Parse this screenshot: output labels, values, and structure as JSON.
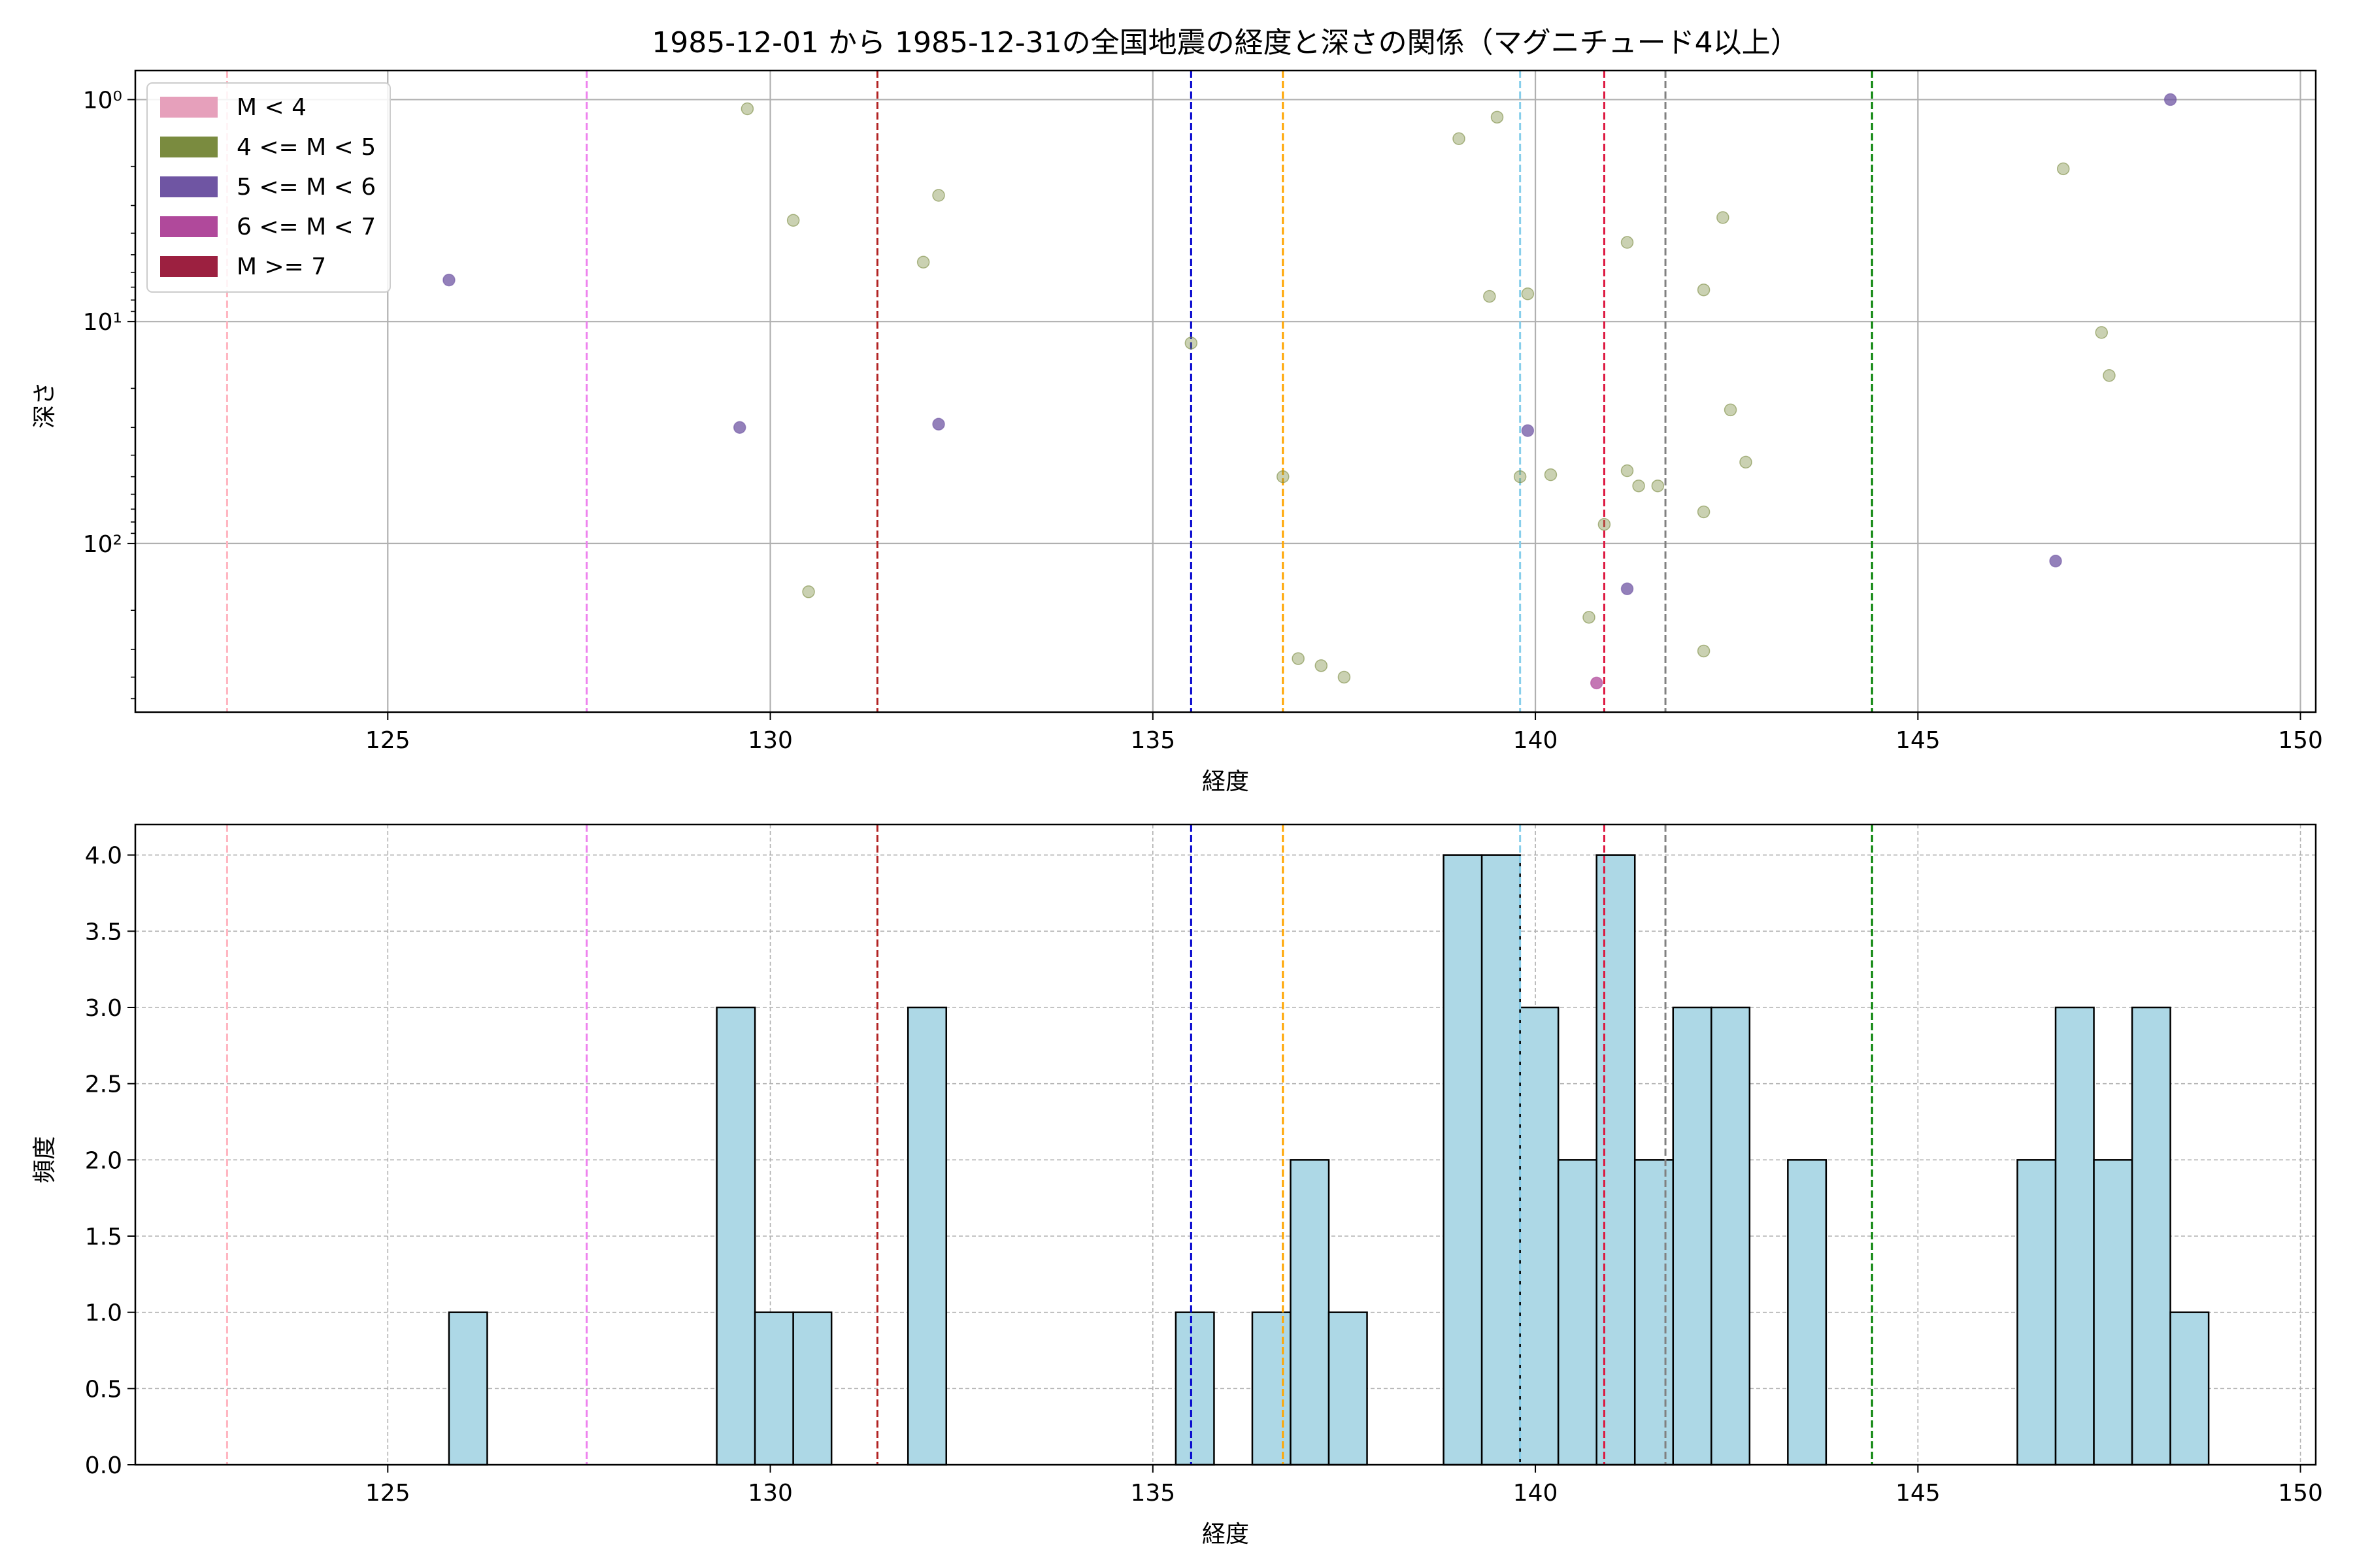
{
  "title": "1985-12-01 から 1985-12-31の全国地震の経度と深さの関係（マグニチュード4以上）",
  "colors": {
    "m_lt4": "#e6a0bb",
    "m_4_5": "#7a8b3f",
    "m_5_6": "#6f55a3",
    "m_6_7": "#b0499b",
    "m_ge7": "#9c2040",
    "hist_fill": "#add8e6"
  },
  "chart_data": [
    {
      "type": "scatter",
      "xlabel": "経度",
      "ylabel": "深さ",
      "xlim": [
        121.7,
        150.2
      ],
      "ylim": [
        575,
        0.74
      ],
      "y_scale": "log",
      "y_inverted": true,
      "grid": true,
      "xticks": [
        125,
        130,
        135,
        140,
        145,
        150
      ],
      "yticks": [
        {
          "value": 1,
          "label": "10⁰"
        },
        {
          "value": 10,
          "label": "10¹"
        },
        {
          "value": 100,
          "label": "10²"
        }
      ],
      "legend": {
        "placement": "top-left",
        "entries": [
          {
            "label": "M < 4",
            "color": "#e6a0bb"
          },
          {
            "label": "4 <= M < 5",
            "color": "#7a8b3f"
          },
          {
            "label": "5 <= M < 6",
            "color": "#6f55a3"
          },
          {
            "label": "6 <= M < 7",
            "color": "#b0499b"
          },
          {
            "label": "M >= 7",
            "color": "#9c2040"
          }
        ]
      },
      "vlines": [
        {
          "x": 122.9,
          "color": "#ffb6c1"
        },
        {
          "x": 127.6,
          "color": "#ee82ee"
        },
        {
          "x": 131.4,
          "color": "#b22222"
        },
        {
          "x": 135.5,
          "color": "#0000cd"
        },
        {
          "x": 136.7,
          "color": "#ffa500"
        },
        {
          "x": 139.8,
          "color": "#87ceeb"
        },
        {
          "x": 140.9,
          "color": "#dc143c"
        },
        {
          "x": 141.7,
          "color": "#808080"
        },
        {
          "x": 144.4,
          "color": "#008000"
        }
      ],
      "series": [
        {
          "name": "4 <= M < 5",
          "color": "#7a8b3f",
          "points": [
            [
              129.7,
              1.1
            ],
            [
              130.3,
              3.5
            ],
            [
              130.5,
              165
            ],
            [
              132.0,
              5.4
            ],
            [
              132.2,
              2.7
            ],
            [
              135.5,
              12.5
            ],
            [
              136.7,
              50
            ],
            [
              136.9,
              330
            ],
            [
              137.2,
              355
            ],
            [
              137.5,
              400
            ],
            [
              139.0,
              1.5
            ],
            [
              139.4,
              7.7
            ],
            [
              139.5,
              1.2
            ],
            [
              139.8,
              50
            ],
            [
              139.9,
              7.5
            ],
            [
              140.2,
              49
            ],
            [
              140.7,
              215
            ],
            [
              140.9,
              82
            ],
            [
              141.2,
              4.4
            ],
            [
              141.2,
              47
            ],
            [
              141.35,
              55
            ],
            [
              141.6,
              55
            ],
            [
              142.2,
              7.2
            ],
            [
              142.2,
              72
            ],
            [
              142.2,
              305
            ],
            [
              142.45,
              3.4
            ],
            [
              142.55,
              25
            ],
            [
              142.75,
              43
            ],
            [
              146.9,
              2.05
            ],
            [
              147.4,
              11.2
            ],
            [
              147.5,
              17.5
            ]
          ]
        },
        {
          "name": "5 <= M < 6",
          "color": "#6f55a3",
          "points": [
            [
              125.8,
              6.5
            ],
            [
              129.6,
              30
            ],
            [
              132.2,
              29
            ],
            [
              139.9,
              31
            ],
            [
              141.2,
              160
            ],
            [
              146.8,
              120
            ],
            [
              148.3,
              1.0
            ]
          ]
        },
        {
          "name": "6 <= M < 7",
          "color": "#b0499b",
          "points": [
            [
              140.8,
              425
            ]
          ]
        }
      ]
    },
    {
      "type": "bar",
      "xlabel": "経度",
      "ylabel": "頻度",
      "xlim": [
        121.7,
        150.2
      ],
      "ylim": [
        0,
        4.2
      ],
      "grid": true,
      "xticks": [
        125,
        130,
        135,
        140,
        145,
        150
      ],
      "yticks": [
        0.0,
        0.5,
        1.0,
        1.5,
        2.0,
        2.5,
        3.0,
        3.5,
        4.0
      ],
      "bin_width": 0.5,
      "bars": [
        {
          "x0": 125.8,
          "count": 1
        },
        {
          "x0": 129.3,
          "count": 3
        },
        {
          "x0": 129.8,
          "count": 1
        },
        {
          "x0": 130.3,
          "count": 1
        },
        {
          "x0": 131.8,
          "count": 3
        },
        {
          "x0": 135.3,
          "count": 1
        },
        {
          "x0": 136.3,
          "count": 1
        },
        {
          "x0": 136.8,
          "count": 2
        },
        {
          "x0": 137.3,
          "count": 1
        },
        {
          "x0": 138.8,
          "count": 4
        },
        {
          "x0": 139.3,
          "count": 4
        },
        {
          "x0": 139.8,
          "count": 3
        },
        {
          "x0": 140.3,
          "count": 2
        },
        {
          "x0": 140.8,
          "count": 4
        },
        {
          "x0": 141.3,
          "count": 2
        },
        {
          "x0": 141.8,
          "count": 3
        },
        {
          "x0": 142.3,
          "count": 3
        },
        {
          "x0": 143.3,
          "count": 2
        },
        {
          "x0": 146.3,
          "count": 2
        },
        {
          "x0": 146.8,
          "count": 3
        },
        {
          "x0": 147.3,
          "count": 2
        },
        {
          "x0": 147.8,
          "count": 3
        },
        {
          "x0": 148.3,
          "count": 1
        }
      ],
      "vlines": [
        {
          "x": 122.9,
          "color": "#ffb6c1"
        },
        {
          "x": 127.6,
          "color": "#ee82ee"
        },
        {
          "x": 131.4,
          "color": "#b22222"
        },
        {
          "x": 135.5,
          "color": "#0000cd"
        },
        {
          "x": 136.7,
          "color": "#ffa500"
        },
        {
          "x": 139.8,
          "color": "#87ceeb"
        },
        {
          "x": 140.9,
          "color": "#dc143c"
        },
        {
          "x": 141.7,
          "color": "#808080"
        },
        {
          "x": 144.4,
          "color": "#008000"
        }
      ]
    }
  ]
}
